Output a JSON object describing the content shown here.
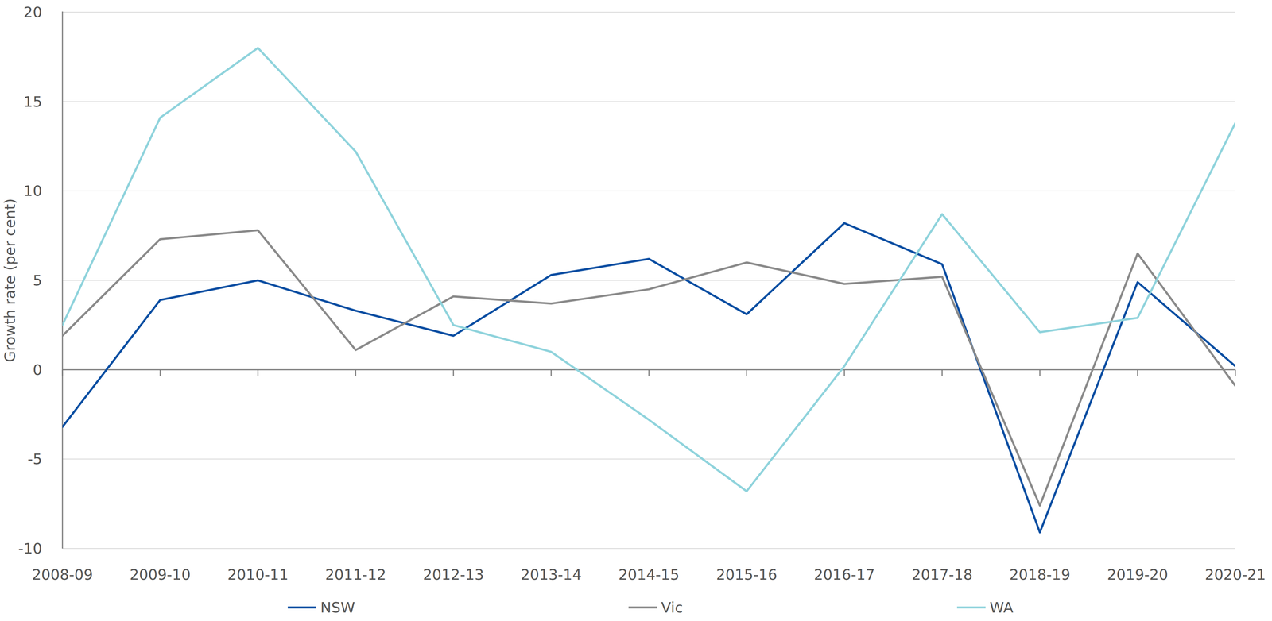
{
  "chart_data": {
    "type": "line",
    "y_label": "Growth rate (per cent)",
    "categories": [
      "2008-09",
      "2009-10",
      "2010-11",
      "2011-12",
      "2012-13",
      "2013-14",
      "2014-15",
      "2015-16",
      "2016-17",
      "2017-18",
      "2018-19",
      "2019-20",
      "2020-21"
    ],
    "series": [
      {
        "name": "NSW",
        "color": "#0b4ea2",
        "values": [
          -3.2,
          3.9,
          5.0,
          3.3,
          1.9,
          5.3,
          6.2,
          3.1,
          8.2,
          5.9,
          -9.1,
          4.9,
          0.2
        ]
      },
      {
        "name": "Vic",
        "color": "#8a8a8a",
        "values": [
          1.9,
          7.3,
          7.8,
          1.1,
          4.1,
          3.7,
          4.5,
          6.0,
          4.8,
          5.2,
          -7.6,
          6.5,
          -0.9
        ]
      },
      {
        "name": "WA",
        "color": "#8fd3dc",
        "values": [
          2.5,
          14.1,
          18.0,
          12.2,
          2.5,
          1.0,
          -2.8,
          -6.8,
          0.2,
          8.7,
          2.1,
          2.9,
          13.8
        ]
      }
    ],
    "ylim": [
      -10,
      20
    ],
    "yticks": [
      -10,
      -5,
      0,
      5,
      10,
      15,
      20
    ],
    "grid": true,
    "legend": "bottom"
  }
}
